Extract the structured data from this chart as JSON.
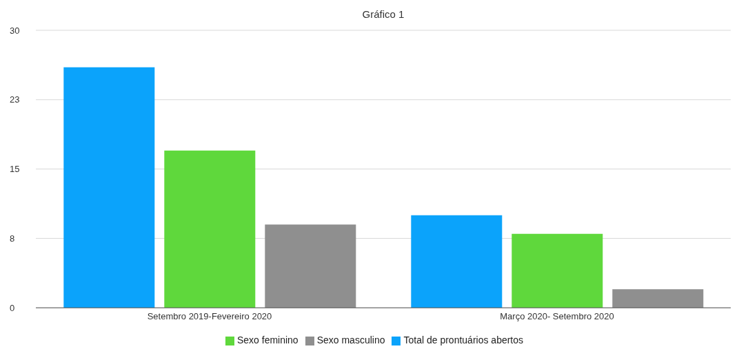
{
  "chart_data": {
    "type": "bar",
    "title": "Gráfico 1",
    "categories": [
      "Setembro 2019-Fevereiro 2020",
      "Março 2020- Setembro 2020"
    ],
    "series": [
      {
        "name": "Total de prontuários abertos",
        "color": "#0ba3fb",
        "values": [
          26,
          10
        ]
      },
      {
        "name": "Sexo feminino",
        "color": "#5fd83c",
        "values": [
          17,
          8
        ]
      },
      {
        "name": "Sexo masculino",
        "color": "#8f8f8f",
        "values": [
          9,
          2
        ]
      }
    ],
    "ylim": [
      0,
      30
    ],
    "yticks": [
      0,
      {
        "value": 7.5,
        "label": "8"
      },
      15,
      {
        "value": 22.5,
        "label": "23"
      },
      30
    ],
    "grid": "y",
    "legend": "bottom"
  }
}
